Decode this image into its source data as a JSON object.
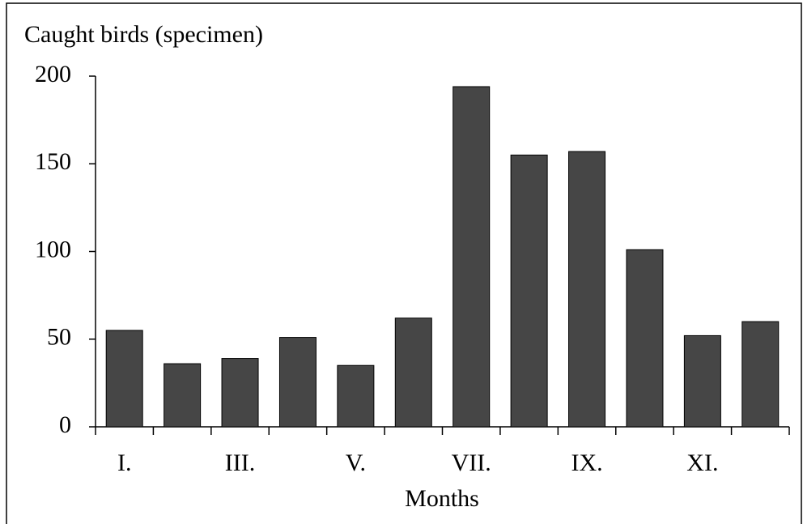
{
  "chart_data": {
    "type": "bar",
    "title": "Caught birds (specimen)",
    "x_label": "Months",
    "categories": [
      "I.",
      null,
      "III.",
      null,
      "V.",
      null,
      "VII.",
      null,
      "IX.",
      null,
      "XI.",
      null
    ],
    "values": [
      55,
      36,
      39,
      51,
      35,
      62,
      194,
      155,
      157,
      101,
      52,
      60
    ],
    "color": "#464646",
    "ylim": [
      0,
      200
    ],
    "yticks": [
      0,
      50,
      100,
      150,
      200
    ],
    "grid": false
  }
}
